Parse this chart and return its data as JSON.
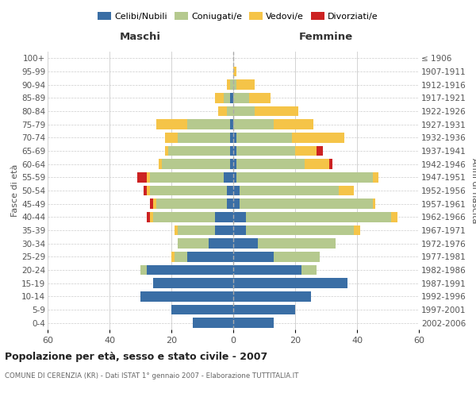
{
  "age_groups": [
    "0-4",
    "5-9",
    "10-14",
    "15-19",
    "20-24",
    "25-29",
    "30-34",
    "35-39",
    "40-44",
    "45-49",
    "50-54",
    "55-59",
    "60-64",
    "65-69",
    "70-74",
    "75-79",
    "80-84",
    "85-89",
    "90-94",
    "95-99",
    "100+"
  ],
  "birth_years": [
    "2002-2006",
    "1997-2001",
    "1992-1996",
    "1987-1991",
    "1982-1986",
    "1977-1981",
    "1972-1976",
    "1967-1971",
    "1962-1966",
    "1957-1961",
    "1952-1956",
    "1947-1951",
    "1942-1946",
    "1937-1941",
    "1932-1936",
    "1927-1931",
    "1922-1926",
    "1917-1921",
    "1912-1916",
    "1907-1911",
    "≤ 1906"
  ],
  "maschi": {
    "celibe": [
      13,
      20,
      30,
      26,
      28,
      15,
      8,
      6,
      6,
      2,
      2,
      3,
      1,
      1,
      1,
      1,
      0,
      1,
      0,
      0,
      0
    ],
    "coniugato": [
      0,
      0,
      0,
      0,
      2,
      4,
      10,
      12,
      20,
      23,
      25,
      24,
      22,
      20,
      17,
      14,
      2,
      2,
      1,
      0,
      0
    ],
    "vedovo": [
      0,
      0,
      0,
      0,
      0,
      1,
      0,
      1,
      1,
      1,
      1,
      1,
      1,
      1,
      4,
      10,
      3,
      3,
      1,
      0,
      0
    ],
    "divorziato": [
      0,
      0,
      0,
      0,
      0,
      0,
      0,
      0,
      1,
      1,
      1,
      3,
      0,
      0,
      0,
      0,
      0,
      0,
      0,
      0,
      0
    ]
  },
  "femmine": {
    "nubile": [
      13,
      20,
      25,
      37,
      22,
      13,
      8,
      4,
      4,
      2,
      2,
      1,
      1,
      1,
      1,
      0,
      0,
      0,
      0,
      0,
      0
    ],
    "coniugata": [
      0,
      0,
      0,
      0,
      5,
      15,
      25,
      35,
      47,
      43,
      32,
      44,
      22,
      19,
      18,
      13,
      7,
      5,
      1,
      0,
      0
    ],
    "vedova": [
      0,
      0,
      0,
      0,
      0,
      0,
      0,
      2,
      2,
      1,
      5,
      2,
      8,
      7,
      17,
      13,
      14,
      7,
      6,
      1,
      0
    ],
    "divorziata": [
      0,
      0,
      0,
      0,
      0,
      0,
      0,
      0,
      0,
      0,
      0,
      0,
      1,
      2,
      0,
      0,
      0,
      0,
      0,
      0,
      0
    ]
  },
  "colors": {
    "celibe": "#3a6ea5",
    "coniugato": "#b5c98e",
    "vedovo": "#f5c448",
    "divorziato": "#cc2222"
  },
  "legend_labels": [
    "Celibi/Nubili",
    "Coniugati/e",
    "Vedovi/e",
    "Divorziati/e"
  ],
  "title": "Popolazione per età, sesso e stato civile - 2007",
  "subtitle": "COMUNE DI CERENZIA (KR) - Dati ISTAT 1° gennaio 2007 - Elaborazione TUTTITALIA.IT",
  "ylabel_left": "Fasce di età",
  "ylabel_right": "Anni di nascita",
  "xlabel_maschi": "Maschi",
  "xlabel_femmine": "Femmine",
  "xlim": 60,
  "bg_color": "#ffffff",
  "grid_color": "#cccccc",
  "bar_height": 0.75
}
